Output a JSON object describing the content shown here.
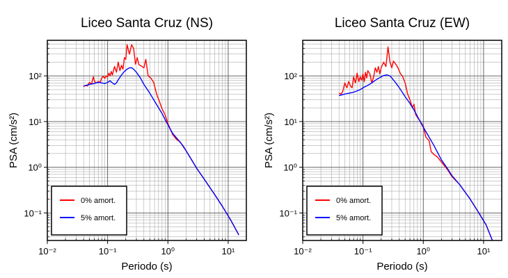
{
  "chart_data": [
    {
      "type": "line",
      "title": "Liceo Santa Cruz (NS)",
      "xlabel": "Periodo (s)",
      "ylabel": "PSA (cm/s²)",
      "xscale": "log",
      "yscale": "log",
      "xlim": [
        0.01,
        20
      ],
      "ylim": [
        0.025,
        600
      ],
      "grid": true,
      "legend_position": "lower-left",
      "x_ticks": [
        0.01,
        0.1,
        1,
        10
      ],
      "x_tick_labels": [
        "10⁻²",
        "10⁻¹",
        "10⁰",
        "10¹"
      ],
      "y_ticks": [
        0.1,
        1,
        10,
        100
      ],
      "y_tick_labels": [
        "10⁻¹",
        "10⁰",
        "10¹",
        "10²"
      ],
      "series": [
        {
          "name": "0% amort.",
          "color": "#ff0000",
          "points": [
            [
              0.04,
              58
            ],
            [
              0.043,
              62
            ],
            [
              0.046,
              60
            ],
            [
              0.05,
              72
            ],
            [
              0.054,
              66
            ],
            [
              0.058,
              95
            ],
            [
              0.061,
              75
            ],
            [
              0.065,
              70
            ],
            [
              0.07,
              75
            ],
            [
              0.075,
              72
            ],
            [
              0.08,
              90
            ],
            [
              0.085,
              98
            ],
            [
              0.09,
              88
            ],
            [
              0.095,
              100
            ],
            [
              0.1,
              95
            ],
            [
              0.105,
              115
            ],
            [
              0.11,
              100
            ],
            [
              0.115,
              125
            ],
            [
              0.12,
              105
            ],
            [
              0.13,
              160
            ],
            [
              0.14,
              120
            ],
            [
              0.15,
              200
            ],
            [
              0.16,
              130
            ],
            [
              0.17,
              170
            ],
            [
              0.18,
              140
            ],
            [
              0.19,
              250
            ],
            [
              0.2,
              230
            ],
            [
              0.21,
              480
            ],
            [
              0.22,
              380
            ],
            [
              0.23,
              300
            ],
            [
              0.25,
              480
            ],
            [
              0.27,
              400
            ],
            [
              0.29,
              180
            ],
            [
              0.31,
              250
            ],
            [
              0.33,
              175
            ],
            [
              0.36,
              165
            ],
            [
              0.4,
              150
            ],
            [
              0.43,
              230
            ],
            [
              0.47,
              100
            ],
            [
              0.52,
              90
            ],
            [
              0.58,
              72
            ],
            [
              0.65,
              40
            ],
            [
              0.72,
              28
            ],
            [
              0.8,
              19
            ],
            [
              0.9,
              14
            ],
            [
              1.0,
              9
            ],
            [
              1.2,
              5.2
            ],
            [
              1.4,
              4.0
            ],
            [
              1.6,
              3.6
            ],
            [
              1.8,
              2.8
            ],
            [
              2.0,
              2.3
            ],
            [
              2.3,
              1.7
            ],
            [
              2.6,
              1.3
            ],
            [
              3.0,
              0.95
            ],
            [
              4.0,
              0.55
            ],
            [
              6.0,
              0.25
            ],
            [
              8.0,
              0.14
            ],
            [
              11.0,
              0.07
            ],
            [
              15.0,
              0.033
            ]
          ]
        },
        {
          "name": "5% amort.",
          "color": "#0000ff",
          "points": [
            [
              0.04,
              60
            ],
            [
              0.05,
              65
            ],
            [
              0.06,
              68
            ],
            [
              0.07,
              72
            ],
            [
              0.08,
              70
            ],
            [
              0.09,
              68
            ],
            [
              0.1,
              72
            ],
            [
              0.11,
              78
            ],
            [
              0.12,
              70
            ],
            [
              0.13,
              65
            ],
            [
              0.14,
              70
            ],
            [
              0.15,
              82
            ],
            [
              0.17,
              105
            ],
            [
              0.19,
              125
            ],
            [
              0.21,
              140
            ],
            [
              0.23,
              150
            ],
            [
              0.25,
              150
            ],
            [
              0.27,
              140
            ],
            [
              0.3,
              120
            ],
            [
              0.35,
              90
            ],
            [
              0.4,
              65
            ],
            [
              0.5,
              42
            ],
            [
              0.6,
              28
            ],
            [
              0.7,
              20
            ],
            [
              0.8,
              15
            ],
            [
              0.9,
              11
            ],
            [
              1.0,
              8.5
            ],
            [
              1.2,
              5.5
            ],
            [
              1.5,
              3.9
            ],
            [
              1.8,
              2.9
            ],
            [
              2.0,
              2.3
            ],
            [
              2.3,
              1.7
            ],
            [
              2.6,
              1.3
            ],
            [
              3.0,
              0.95
            ],
            [
              4.0,
              0.55
            ],
            [
              6.0,
              0.25
            ],
            [
              8.0,
              0.14
            ],
            [
              11.0,
              0.07
            ],
            [
              15.0,
              0.033
            ]
          ]
        }
      ]
    },
    {
      "type": "line",
      "title": "Liceo Santa Cruz (EW)",
      "xlabel": "Periodo (s)",
      "ylabel": "PSA (cm/s²)",
      "xscale": "log",
      "yscale": "log",
      "xlim": [
        0.01,
        20
      ],
      "ylim": [
        0.025,
        600
      ],
      "grid": true,
      "legend_position": "lower-left",
      "x_ticks": [
        0.01,
        0.1,
        1,
        10
      ],
      "x_tick_labels": [
        "10⁻²",
        "10⁻¹",
        "10⁰",
        "10¹"
      ],
      "y_ticks": [
        0.1,
        1,
        10,
        100
      ],
      "y_tick_labels": [
        "10⁻¹",
        "10⁰",
        "10¹",
        "10²"
      ],
      "series": [
        {
          "name": "0% amort.",
          "color": "#ff0000",
          "points": [
            [
              0.04,
              42
            ],
            [
              0.043,
              40
            ],
            [
              0.046,
              45
            ],
            [
              0.05,
              70
            ],
            [
              0.054,
              55
            ],
            [
              0.058,
              75
            ],
            [
              0.062,
              60
            ],
            [
              0.066,
              55
            ],
            [
              0.07,
              95
            ],
            [
              0.075,
              70
            ],
            [
              0.08,
              115
            ],
            [
              0.085,
              75
            ],
            [
              0.09,
              95
            ],
            [
              0.095,
              80
            ],
            [
              0.1,
              110
            ],
            [
              0.105,
              75
            ],
            [
              0.11,
              120
            ],
            [
              0.115,
              90
            ],
            [
              0.12,
              130
            ],
            [
              0.13,
              110
            ],
            [
              0.14,
              70
            ],
            [
              0.15,
              95
            ],
            [
              0.16,
              150
            ],
            [
              0.17,
              120
            ],
            [
              0.18,
              160
            ],
            [
              0.19,
              110
            ],
            [
              0.2,
              150
            ],
            [
              0.22,
              200
            ],
            [
              0.24,
              160
            ],
            [
              0.26,
              430
            ],
            [
              0.28,
              200
            ],
            [
              0.3,
              150
            ],
            [
              0.32,
              210
            ],
            [
              0.35,
              180
            ],
            [
              0.38,
              150
            ],
            [
              0.42,
              110
            ],
            [
              0.45,
              100
            ],
            [
              0.5,
              70
            ],
            [
              0.55,
              40
            ],
            [
              0.6,
              30
            ],
            [
              0.66,
              20
            ],
            [
              0.7,
              24
            ],
            [
              0.75,
              14
            ],
            [
              0.85,
              11
            ],
            [
              1.0,
              8
            ],
            [
              1.1,
              4.6
            ],
            [
              1.25,
              3.8
            ],
            [
              1.35,
              2.2
            ],
            [
              1.5,
              1.9
            ],
            [
              1.7,
              1.7
            ],
            [
              2.0,
              1.3
            ],
            [
              2.5,
              0.9
            ],
            [
              3.0,
              0.62
            ],
            [
              4.0,
              0.42
            ],
            [
              6.0,
              0.2
            ],
            [
              8.0,
              0.11
            ],
            [
              11.0,
              0.055
            ],
            [
              14.0,
              0.025
            ]
          ]
        },
        {
          "name": "5% amort.",
          "color": "#0000ff",
          "points": [
            [
              0.04,
              37
            ],
            [
              0.05,
              40
            ],
            [
              0.06,
              42
            ],
            [
              0.07,
              44
            ],
            [
              0.08,
              47
            ],
            [
              0.09,
              50
            ],
            [
              0.1,
              55
            ],
            [
              0.12,
              62
            ],
            [
              0.14,
              70
            ],
            [
              0.16,
              80
            ],
            [
              0.18,
              88
            ],
            [
              0.2,
              95
            ],
            [
              0.22,
              102
            ],
            [
              0.25,
              105
            ],
            [
              0.28,
              100
            ],
            [
              0.3,
              90
            ],
            [
              0.35,
              70
            ],
            [
              0.4,
              55
            ],
            [
              0.5,
              35
            ],
            [
              0.6,
              25
            ],
            [
              0.7,
              18
            ],
            [
              0.8,
              13
            ],
            [
              1.0,
              7.5
            ],
            [
              1.2,
              5
            ],
            [
              1.5,
              3
            ],
            [
              2.0,
              1.45
            ],
            [
              2.5,
              0.95
            ],
            [
              3.0,
              0.65
            ],
            [
              4.0,
              0.42
            ],
            [
              6.0,
              0.2
            ],
            [
              8.0,
              0.11
            ],
            [
              11.0,
              0.055
            ],
            [
              14.0,
              0.025
            ]
          ]
        }
      ]
    }
  ]
}
